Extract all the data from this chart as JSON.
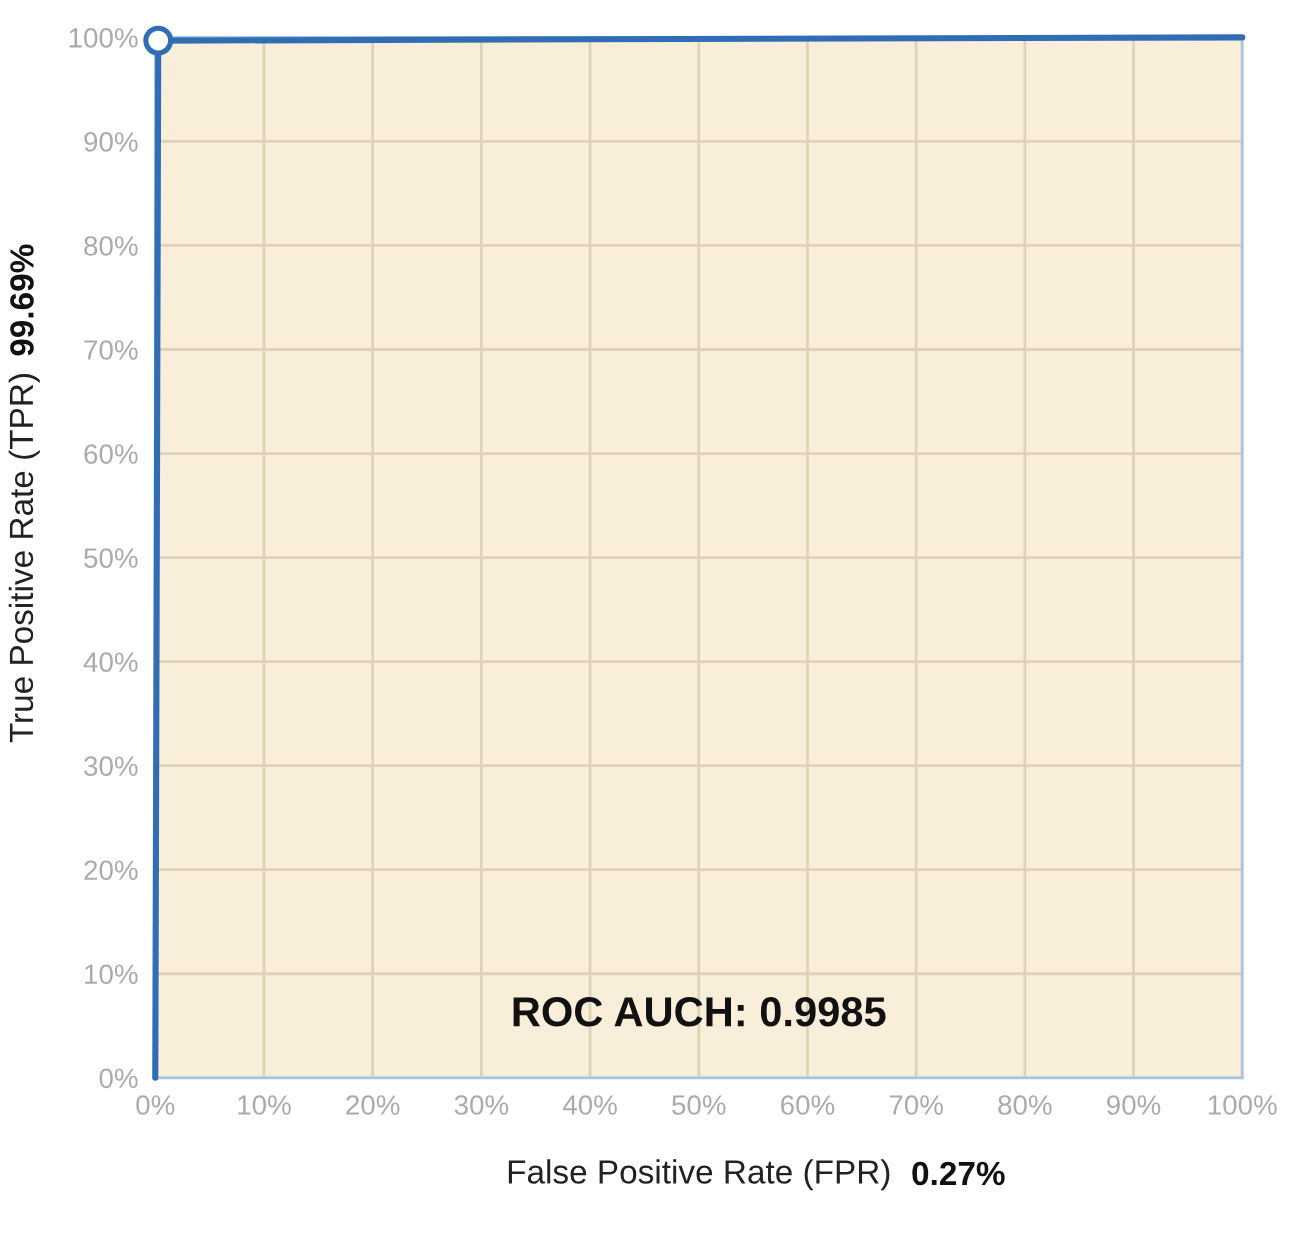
{
  "chart_data": {
    "type": "line",
    "xlabel": "False Positive Rate (FPR)",
    "ylabel": "True Positive Rate (TPR)",
    "annotations": [
      "ROC AUCH: 0.9985",
      "99.69%",
      "0.27%"
    ],
    "series": [
      {
        "color": "#2f6db5",
        "x": [
          0,
          0.27,
          100
        ],
        "values": [
          0,
          99.69,
          100
        ]
      },
      {
        "type": "scatter",
        "color": "#2f6db5",
        "marker": "circle",
        "x": [
          0.27
        ],
        "values": [
          99.69
        ]
      }
    ],
    "xlim": [
      0,
      100
    ],
    "ylim": [
      0,
      100
    ],
    "xticks": [
      {
        "value": 0,
        "label": "0%"
      },
      {
        "value": 10,
        "label": "10%"
      },
      {
        "value": 20,
        "label": "20%"
      },
      {
        "value": 30,
        "label": "30%"
      },
      {
        "value": 40,
        "label": "40%"
      },
      {
        "value": 50,
        "label": "50%"
      },
      {
        "value": 60,
        "label": "60%"
      },
      {
        "value": 70,
        "label": "70%"
      },
      {
        "value": 80,
        "label": "80%"
      },
      {
        "value": 90,
        "label": "90%"
      },
      {
        "value": 100,
        "label": "100%"
      }
    ],
    "yticks": [
      {
        "value": 0,
        "label": "0%"
      },
      {
        "value": 10,
        "label": "10%"
      },
      {
        "value": 20,
        "label": "20%"
      },
      {
        "value": 30,
        "label": "30%"
      },
      {
        "value": 40,
        "label": "40%"
      },
      {
        "value": 50,
        "label": "50%"
      },
      {
        "value": 60,
        "label": "60%"
      },
      {
        "value": 70,
        "label": "70%"
      },
      {
        "value": 80,
        "label": "80%"
      },
      {
        "value": 90,
        "label": "90%"
      },
      {
        "value": 100,
        "label": "100%"
      }
    ],
    "grid": true,
    "legend": false
  }
}
